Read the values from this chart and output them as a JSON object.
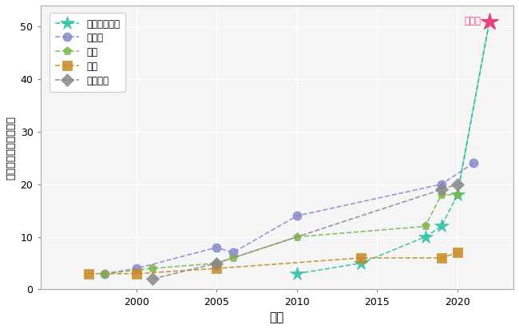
{
  "superconducting": {
    "x": [
      2010,
      2014,
      2018,
      2019,
      2020,
      2022
    ],
    "y": [
      3,
      5,
      10,
      12,
      18,
      51
    ],
    "color": "#2bbfa0",
    "label": "超导量子比特",
    "marker": "*",
    "markersize": 13,
    "lw": 1.2
  },
  "ion_trap": {
    "x": [
      1998,
      2000,
      2005,
      2006,
      2010,
      2019,
      2021
    ],
    "y": [
      3,
      4,
      8,
      7,
      14,
      20,
      24
    ],
    "color": "#8888cc",
    "label": "离子阱",
    "marker": "o",
    "markersize": 8,
    "lw": 1.2
  },
  "photon": {
    "x": [
      1998,
      2001,
      2005,
      2006,
      2010,
      2018,
      2019,
      2020
    ],
    "y": [
      3,
      4,
      5,
      6,
      10,
      12,
      18,
      18
    ],
    "color": "#7ab648",
    "label": "光子",
    "marker": "p",
    "markersize": 8,
    "lw": 1.2
  },
  "spin": {
    "x": [
      1997,
      2000,
      2005,
      2014,
      2019,
      2020
    ],
    "y": [
      3,
      3,
      4,
      6,
      6,
      7
    ],
    "color": "#c88820",
    "label": "自旋",
    "marker": "s",
    "markersize": 8,
    "lw": 1.2
  },
  "neutral_atom": {
    "x": [
      2001,
      2005,
      2019,
      2020
    ],
    "y": [
      2,
      5,
      19,
      20
    ],
    "color": "#888888",
    "label": "中性原子",
    "marker": "D",
    "markersize": 8,
    "lw": 1.2
  },
  "this_work": {
    "x": [
      2022
    ],
    "y": [
      51
    ],
    "color": "#e8447a",
    "label": "本工作",
    "marker": "*",
    "markersize": 16
  },
  "xlim": [
    1994,
    2023.5
  ],
  "ylim": [
    0,
    54
  ],
  "xlabel": "年份",
  "ylabel": "真纠缠比特数目（个）",
  "xticks": [
    2000,
    2005,
    2010,
    2015,
    2020
  ],
  "yticks": [
    0,
    10,
    20,
    30,
    40,
    50
  ],
  "bg_color": "#ffffff",
  "plot_bg_color": "#f5f5f5",
  "grid_color": "#ffffff",
  "figsize": [
    6.5,
    4.12
  ],
  "dpi": 100
}
